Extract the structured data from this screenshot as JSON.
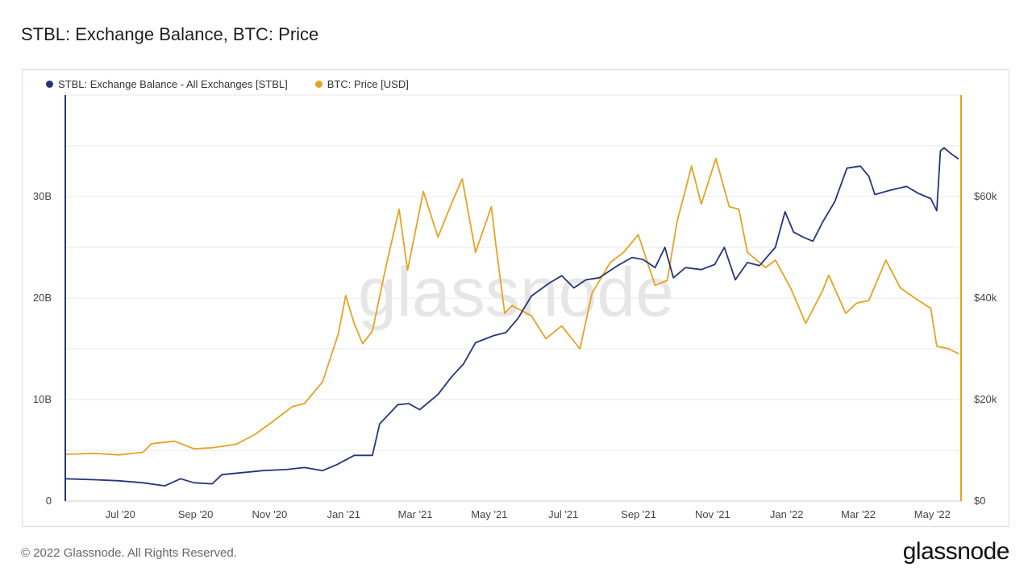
{
  "header": {
    "title": "STBL: Exchange Balance, BTC: Price"
  },
  "footer": {
    "copyright": "© 2022 Glassnode. All Rights Reserved.",
    "logo": "glassnode"
  },
  "watermark": "glassnode",
  "colors": {
    "stbl": "#26357d",
    "btc": "#e6a323",
    "grid": "#e8e8e8"
  },
  "chart_data": {
    "type": "line",
    "title": "STBL: Exchange Balance, BTC: Price",
    "x_tick_labels": [
      "Jul '20",
      "Sep '20",
      "Nov '20",
      "Jan '21",
      "Mar '21",
      "May '21",
      "Jul '21",
      "Sep '21",
      "Nov '21",
      "Jan '22",
      "Mar '22",
      "May '22"
    ],
    "y_left_tick_labels": [
      "0",
      "10B",
      "20B",
      "30B"
    ],
    "y_right_tick_labels": [
      "$0",
      "$20k",
      "$40k",
      "$60k"
    ],
    "y_left_range": [
      0,
      40000000000
    ],
    "y_right_range": [
      0,
      80000
    ],
    "x_range": [
      "2020-05-22",
      "2022-05-30"
    ],
    "grid": true,
    "legend_position": "top-left",
    "series": [
      {
        "name": "STBL: Exchange Balance - All Exchanges [STBL]",
        "axis": "left",
        "color": "#26357d",
        "points": [
          [
            "2020-05-22",
            2200000000.0
          ],
          [
            "2020-06-15",
            2100000000.0
          ],
          [
            "2020-07-05",
            2000000000.0
          ],
          [
            "2020-07-25",
            1800000000.0
          ],
          [
            "2020-08-12",
            1500000000.0
          ],
          [
            "2020-08-25",
            2200000000.0
          ],
          [
            "2020-09-05",
            1800000000.0
          ],
          [
            "2020-09-20",
            1700000000.0
          ],
          [
            "2020-09-28",
            2600000000.0
          ],
          [
            "2020-10-15",
            2800000000.0
          ],
          [
            "2020-11-01",
            3000000000.0
          ],
          [
            "2020-11-20",
            3100000000.0
          ],
          [
            "2020-12-05",
            3300000000.0
          ],
          [
            "2020-12-20",
            3000000000.0
          ],
          [
            "2021-01-01",
            3600000000.0
          ],
          [
            "2021-01-15",
            4500000000.0
          ],
          [
            "2021-01-30",
            4500000000.0
          ],
          [
            "2021-02-05",
            7600000000.0
          ],
          [
            "2021-02-20",
            9500000000.0
          ],
          [
            "2021-03-01",
            9600000000.0
          ],
          [
            "2021-03-10",
            9000000000.0
          ],
          [
            "2021-03-25",
            10500000000.0
          ],
          [
            "2021-04-05",
            12200000000.0
          ],
          [
            "2021-04-15",
            13500000000.0
          ],
          [
            "2021-04-25",
            15600000000.0
          ],
          [
            "2021-05-10",
            16300000000.0
          ],
          [
            "2021-05-20",
            16600000000.0
          ],
          [
            "2021-05-30",
            18000000000.0
          ],
          [
            "2021-06-10",
            20200000000.0
          ],
          [
            "2021-06-25",
            21500000000.0
          ],
          [
            "2021-07-05",
            22200000000.0
          ],
          [
            "2021-07-15",
            21000000000.0
          ],
          [
            "2021-07-25",
            21800000000.0
          ],
          [
            "2021-08-05",
            22000000000.0
          ],
          [
            "2021-08-20",
            23200000000.0
          ],
          [
            "2021-09-01",
            24000000000.0
          ],
          [
            "2021-09-10",
            23800000000.0
          ],
          [
            "2021-09-20",
            23000000000.0
          ],
          [
            "2021-09-28",
            25000000000.0
          ],
          [
            "2021-10-05",
            22000000000.0
          ],
          [
            "2021-10-15",
            23000000000.0
          ],
          [
            "2021-10-28",
            22800000000.0
          ],
          [
            "2021-11-08",
            23300000000.0
          ],
          [
            "2021-11-16",
            25000000000.0
          ],
          [
            "2021-11-25",
            21800000000.0
          ],
          [
            "2021-12-05",
            23500000000.0
          ],
          [
            "2021-12-15",
            23200000000.0
          ],
          [
            "2021-12-28",
            25000000000.0
          ],
          [
            "2022-01-05",
            28500000000.0
          ],
          [
            "2022-01-12",
            26500000000.0
          ],
          [
            "2022-01-20",
            26000000000.0
          ],
          [
            "2022-01-28",
            25600000000.0
          ],
          [
            "2022-02-05",
            27500000000.0
          ],
          [
            "2022-02-15",
            29500000000.0
          ],
          [
            "2022-02-25",
            32800000000.0
          ],
          [
            "2022-03-08",
            33000000000.0
          ],
          [
            "2022-03-15",
            32000000000.0
          ],
          [
            "2022-03-20",
            30200000000.0
          ],
          [
            "2022-04-01",
            30600000000.0
          ],
          [
            "2022-04-15",
            31000000000.0
          ],
          [
            "2022-04-25",
            30300000000.0
          ],
          [
            "2022-05-05",
            29800000000.0
          ],
          [
            "2022-05-10",
            28600000000.0
          ],
          [
            "2022-05-13",
            34500000000.0
          ],
          [
            "2022-05-16",
            34800000000.0
          ],
          [
            "2022-05-22",
            34200000000.0
          ],
          [
            "2022-05-28",
            33700000000.0
          ]
        ]
      },
      {
        "name": "BTC: Price [USD]",
        "axis": "right",
        "color": "#e6a323",
        "points": [
          [
            "2020-05-22",
            9200
          ],
          [
            "2020-06-15",
            9400
          ],
          [
            "2020-07-05",
            9100
          ],
          [
            "2020-07-25",
            9600
          ],
          [
            "2020-08-01",
            11300
          ],
          [
            "2020-08-20",
            11800
          ],
          [
            "2020-09-05",
            10300
          ],
          [
            "2020-09-20",
            10500
          ],
          [
            "2020-10-10",
            11200
          ],
          [
            "2020-10-25",
            13100
          ],
          [
            "2020-11-08",
            15500
          ],
          [
            "2020-11-25",
            18600
          ],
          [
            "2020-12-05",
            19200
          ],
          [
            "2020-12-20",
            23500
          ],
          [
            "2021-01-02",
            33000
          ],
          [
            "2021-01-08",
            40500
          ],
          [
            "2021-01-15",
            35000
          ],
          [
            "2021-01-22",
            31000
          ],
          [
            "2021-01-30",
            33500
          ],
          [
            "2021-02-10",
            46000
          ],
          [
            "2021-02-21",
            57500
          ],
          [
            "2021-02-28",
            45500
          ],
          [
            "2021-03-13",
            61000
          ],
          [
            "2021-03-25",
            52000
          ],
          [
            "2021-04-05",
            58500
          ],
          [
            "2021-04-14",
            63500
          ],
          [
            "2021-04-25",
            49000
          ],
          [
            "2021-05-08",
            58000
          ],
          [
            "2021-05-12",
            50000
          ],
          [
            "2021-05-19",
            37000
          ],
          [
            "2021-05-25",
            38500
          ],
          [
            "2021-06-10",
            36500
          ],
          [
            "2021-06-22",
            32000
          ],
          [
            "2021-07-05",
            34500
          ],
          [
            "2021-07-20",
            30000
          ],
          [
            "2021-07-30",
            41000
          ],
          [
            "2021-08-14",
            47000
          ],
          [
            "2021-08-25",
            49000
          ],
          [
            "2021-09-06",
            52500
          ],
          [
            "2021-09-20",
            42500
          ],
          [
            "2021-09-30",
            43500
          ],
          [
            "2021-10-08",
            55000
          ],
          [
            "2021-10-20",
            66000
          ],
          [
            "2021-10-28",
            58500
          ],
          [
            "2021-11-09",
            67500
          ],
          [
            "2021-11-20",
            58000
          ],
          [
            "2021-11-28",
            57500
          ],
          [
            "2021-12-05",
            49000
          ],
          [
            "2021-12-20",
            46000
          ],
          [
            "2021-12-28",
            47500
          ],
          [
            "2022-01-10",
            41800
          ],
          [
            "2022-01-22",
            35000
          ],
          [
            "2022-02-05",
            41500
          ],
          [
            "2022-02-10",
            44500
          ],
          [
            "2022-02-24",
            37000
          ],
          [
            "2022-03-05",
            39000
          ],
          [
            "2022-03-15",
            39500
          ],
          [
            "2022-03-29",
            47500
          ],
          [
            "2022-04-10",
            42000
          ],
          [
            "2022-04-25",
            39500
          ],
          [
            "2022-05-05",
            38000
          ],
          [
            "2022-05-10",
            30500
          ],
          [
            "2022-05-20",
            30000
          ],
          [
            "2022-05-28",
            29000
          ]
        ]
      }
    ]
  }
}
